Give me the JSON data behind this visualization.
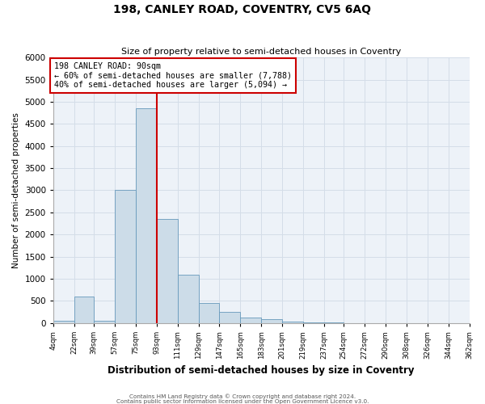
{
  "title": "198, CANLEY ROAD, COVENTRY, CV5 6AQ",
  "subtitle": "Size of property relative to semi-detached houses in Coventry",
  "xlabel": "Distribution of semi-detached houses by size in Coventry",
  "ylabel": "Number of semi-detached properties",
  "bin_edges": [
    4,
    22,
    39,
    57,
    75,
    93,
    111,
    129,
    147,
    165,
    183,
    201,
    219,
    237,
    254,
    272,
    290,
    308,
    326,
    344,
    362
  ],
  "bar_heights": [
    50,
    600,
    50,
    3000,
    4850,
    2350,
    1100,
    450,
    250,
    130,
    80,
    30,
    10,
    5,
    0,
    0,
    0,
    0,
    0,
    0
  ],
  "bar_color": "#ccdce8",
  "bar_edgecolor": "#6699bb",
  "grid_color": "#d4dde8",
  "background_color": "#edf2f8",
  "vline_x": 93,
  "vline_color": "#cc0000",
  "annotation_title": "198 CANLEY ROAD: 90sqm",
  "annotation_line1": "← 60% of semi-detached houses are smaller (7,788)",
  "annotation_line2": "40% of semi-detached houses are larger (5,094) →",
  "annotation_box_facecolor": "#ffffff",
  "annotation_box_edgecolor": "#cc0000",
  "ylim": [
    0,
    6000
  ],
  "yticks": [
    0,
    500,
    1000,
    1500,
    2000,
    2500,
    3000,
    3500,
    4000,
    4500,
    5000,
    5500,
    6000
  ],
  "xtick_labels": [
    "4sqm",
    "22sqm",
    "39sqm",
    "57sqm",
    "75sqm",
    "93sqm",
    "111sqm",
    "129sqm",
    "147sqm",
    "165sqm",
    "183sqm",
    "201sqm",
    "219sqm",
    "237sqm",
    "254sqm",
    "272sqm",
    "290sqm",
    "308sqm",
    "326sqm",
    "344sqm",
    "362sqm"
  ],
  "footer1": "Contains HM Land Registry data © Crown copyright and database right 2024.",
  "footer2": "Contains public sector information licensed under the Open Government Licence v3.0."
}
